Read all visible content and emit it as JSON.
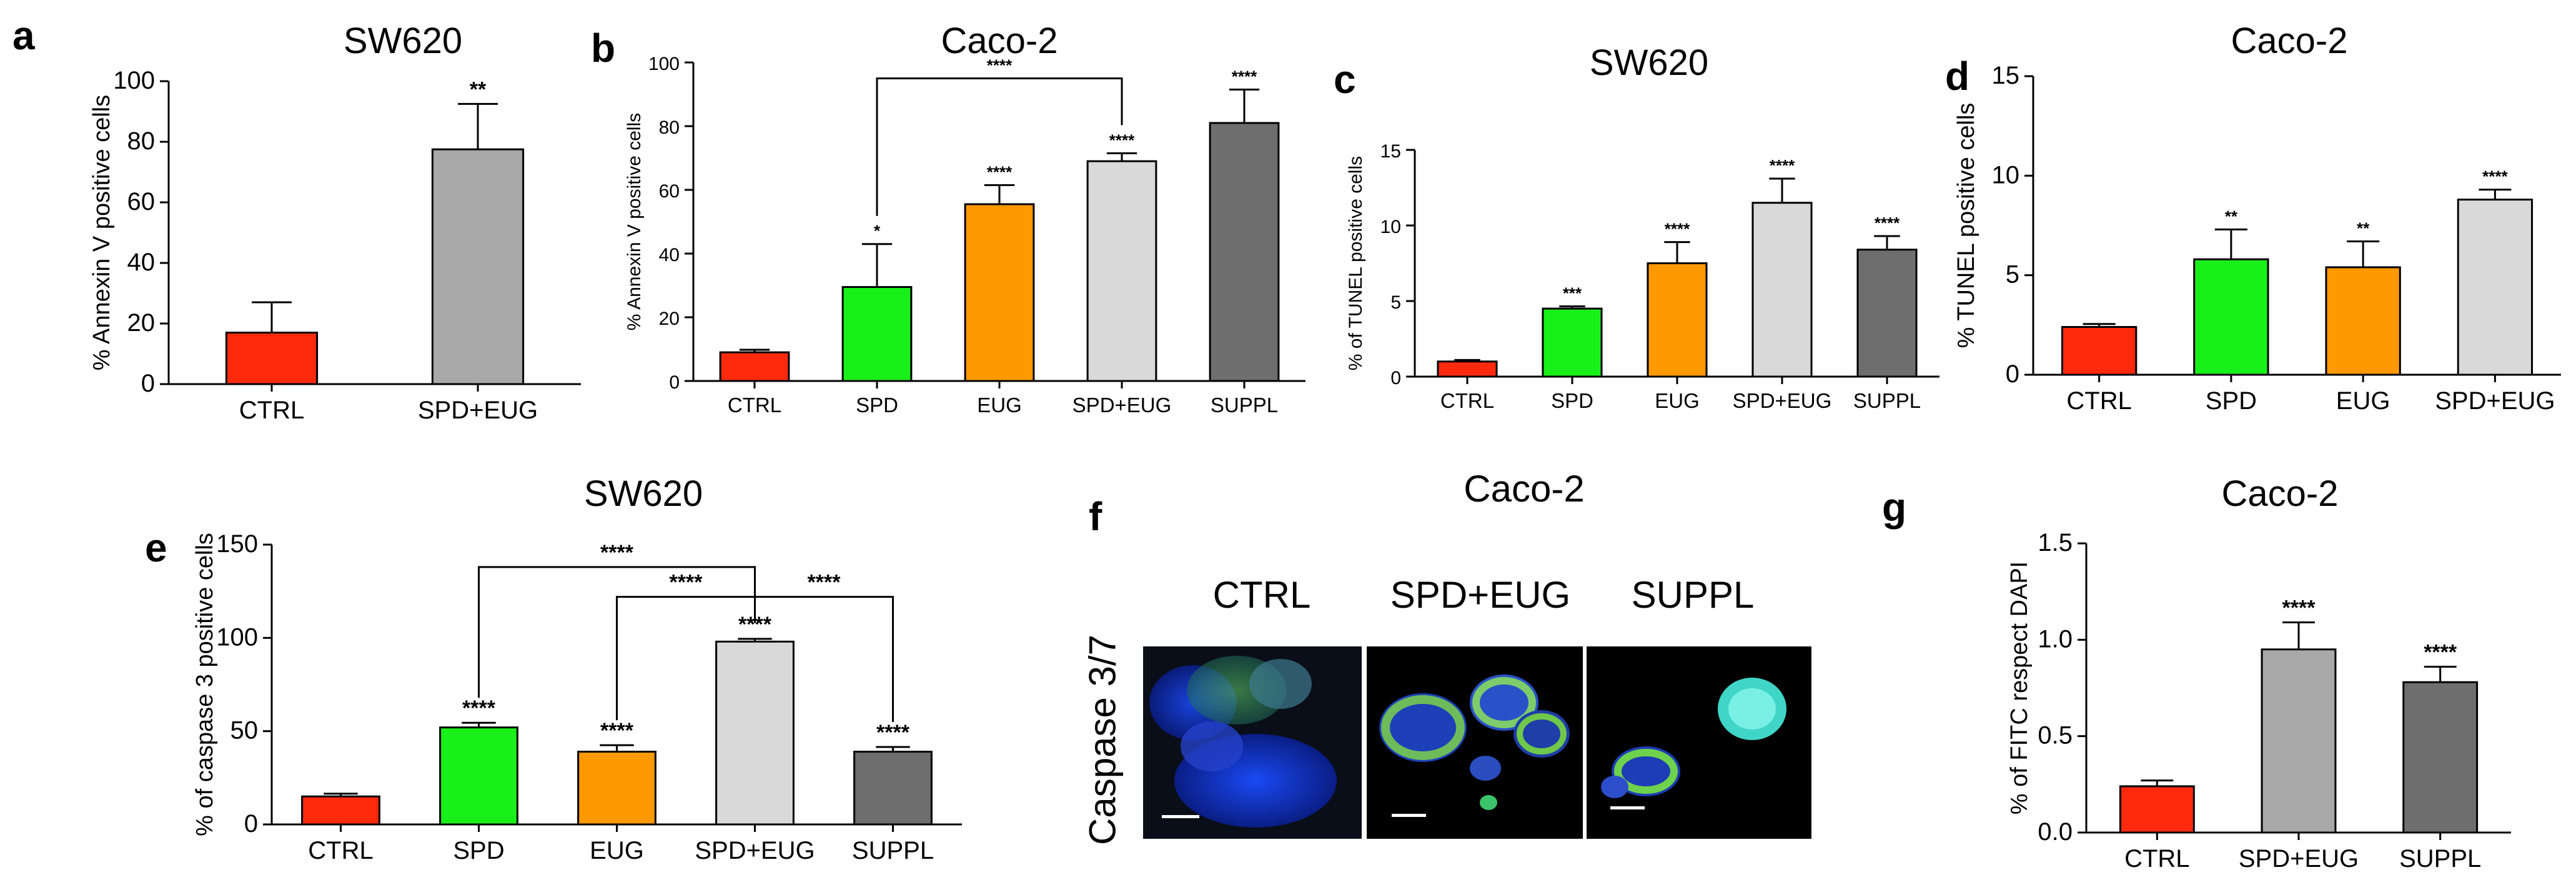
{
  "panels": {
    "a": "a",
    "b": "b",
    "c": "c",
    "d": "d",
    "e": "e",
    "f": "f",
    "g": "g"
  },
  "colors": {
    "CTRL": "#ff2a0d",
    "SPD": "#19f019",
    "EUG": "#ff9900",
    "SPD+EUG_light": "#d9d9d9",
    "SPD+EUG_mid": "#a8a8a8",
    "SUPPL": "#6e6e6e"
  },
  "panel_f": {
    "title": "Caco-2",
    "row_label": "Caspase 3/7",
    "columns": [
      "CTRL",
      "SPD+EUG",
      "SUPPL"
    ]
  },
  "chart_data": [
    {
      "id": "a",
      "type": "bar",
      "title": "SW620",
      "ylabel": "% Annexin V positive cells",
      "categories": [
        "CTRL",
        "SPD+EUG"
      ],
      "values": [
        17,
        77.5
      ],
      "errors": [
        10,
        15
      ],
      "significance": [
        "",
        "**"
      ],
      "ylim": [
        0,
        100
      ],
      "yticks": [
        0,
        20,
        40,
        60,
        80,
        100
      ],
      "colors": [
        "#ff2a0d",
        "#a8a8a8"
      ]
    },
    {
      "id": "b",
      "type": "bar",
      "title": "Caco-2",
      "ylabel": "% Annexin V positive cells",
      "categories": [
        "CTRL",
        "SPD",
        "EUG",
        "SPD+EUG",
        "SUPPL"
      ],
      "values": [
        9,
        29.5,
        55.5,
        69,
        81
      ],
      "errors": [
        0.8,
        13.5,
        6,
        2.5,
        10.5
      ],
      "significance": [
        "",
        "*",
        "****",
        "****",
        "****"
      ],
      "brackets": [
        {
          "from": 1,
          "to": 3,
          "label": "****"
        }
      ],
      "ylim": [
        0,
        100
      ],
      "yticks": [
        0,
        20,
        40,
        60,
        80,
        100
      ],
      "colors": [
        "#ff2a0d",
        "#19f019",
        "#ff9900",
        "#d9d9d9",
        "#6e6e6e"
      ]
    },
    {
      "id": "c",
      "type": "bar",
      "title": "SW620",
      "ylabel": "% of TUNEL positive cells",
      "categories": [
        "CTRL",
        "SPD",
        "EUG",
        "SPD+EUG",
        "SUPPL"
      ],
      "values": [
        1,
        4.5,
        7.5,
        11.5,
        8.4
      ],
      "errors": [
        0.1,
        0.15,
        1.4,
        1.6,
        0.9
      ],
      "significance": [
        "",
        "***",
        "****",
        "****",
        "****"
      ],
      "ylim": [
        0,
        15
      ],
      "yticks": [
        0,
        5,
        10,
        15
      ],
      "colors": [
        "#ff2a0d",
        "#19f019",
        "#ff9900",
        "#d9d9d9",
        "#6e6e6e"
      ]
    },
    {
      "id": "d",
      "type": "bar",
      "title": "Caco-2",
      "ylabel": "% TUNEL positive cells",
      "categories": [
        "CTRL",
        "SPD",
        "EUG",
        "SPD+EUG"
      ],
      "values": [
        2.4,
        5.8,
        5.4,
        8.8
      ],
      "errors": [
        0.15,
        1.5,
        1.3,
        0.5
      ],
      "significance": [
        "",
        "**",
        "**",
        "****"
      ],
      "ylim": [
        0,
        15
      ],
      "yticks": [
        0,
        5,
        10,
        15
      ],
      "colors": [
        "#ff2a0d",
        "#19f019",
        "#ff9900",
        "#d9d9d9"
      ]
    },
    {
      "id": "e",
      "type": "bar",
      "title": "SW620",
      "ylabel": "% of caspase 3 positive cells",
      "categories": [
        "CTRL",
        "SPD",
        "EUG",
        "SPD+EUG",
        "SUPPL"
      ],
      "values": [
        15,
        52,
        39,
        98,
        39
      ],
      "errors": [
        1.5,
        2.5,
        3.5,
        1.5,
        2.5
      ],
      "significance": [
        "",
        "****",
        "****",
        "****",
        "****"
      ],
      "brackets": [
        {
          "from": 1,
          "to": 3,
          "label": "****",
          "level": 2
        },
        {
          "from": 2,
          "to": 3,
          "label": "****",
          "level": 1
        },
        {
          "from": 3,
          "to": 4,
          "label": "****",
          "level": 1
        }
      ],
      "ylim": [
        0,
        150
      ],
      "yticks": [
        0,
        50,
        100,
        150
      ],
      "colors": [
        "#ff2a0d",
        "#19f019",
        "#ff9900",
        "#d9d9d9",
        "#6e6e6e"
      ]
    },
    {
      "id": "g",
      "type": "bar",
      "title": "Caco-2",
      "ylabel": "% of FITC respect DAPI",
      "categories": [
        "CTRL",
        "SPD+EUG",
        "SUPPL"
      ],
      "values": [
        0.24,
        0.95,
        0.78
      ],
      "errors": [
        0.03,
        0.14,
        0.08
      ],
      "significance": [
        "",
        "****",
        "****"
      ],
      "ylim": [
        0,
        1.5
      ],
      "yticks": [
        "0.0",
        "0.5",
        "1.0",
        "1.5"
      ],
      "colors": [
        "#ff2a0d",
        "#a8a8a8",
        "#6e6e6e"
      ]
    }
  ]
}
